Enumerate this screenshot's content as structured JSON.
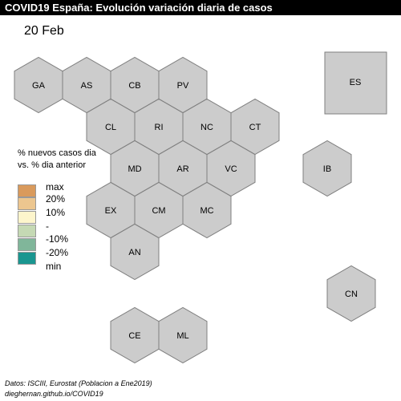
{
  "title": "COVID19 España: Evolución variación diaria de casos",
  "date_label": "20 Feb",
  "legend": {
    "title_line1": "% nuevos casos dia",
    "title_line2": "vs. % dia anterior",
    "items": [
      {
        "label": "max",
        "color": "#d99a5c"
      },
      {
        "label": "20%",
        "color": "#ecc68f"
      },
      {
        "label": "10%",
        "color": "#fdf5cc"
      },
      {
        "label": "-",
        "color": "#c5d9b4"
      },
      {
        "label": "-10%",
        "color": "#80b69a"
      },
      {
        "label": "-20%",
        "color": "#1a9690"
      },
      {
        "label": "min",
        "color": "#1a9690"
      }
    ]
  },
  "regions": [
    {
      "code": "GA",
      "fill": "#cccccc"
    },
    {
      "code": "AS",
      "fill": "#cccccc"
    },
    {
      "code": "CB",
      "fill": "#cccccc"
    },
    {
      "code": "PV",
      "fill": "#cccccc"
    },
    {
      "code": "CL",
      "fill": "#cccccc"
    },
    {
      "code": "RI",
      "fill": "#cccccc"
    },
    {
      "code": "NC",
      "fill": "#cccccc"
    },
    {
      "code": "CT",
      "fill": "#cccccc"
    },
    {
      "code": "MD",
      "fill": "#cccccc"
    },
    {
      "code": "AR",
      "fill": "#cccccc"
    },
    {
      "code": "VC",
      "fill": "#cccccc"
    },
    {
      "code": "IB",
      "fill": "#cccccc"
    },
    {
      "code": "EX",
      "fill": "#cccccc"
    },
    {
      "code": "CM",
      "fill": "#cccccc"
    },
    {
      "code": "MC",
      "fill": "#cccccc"
    },
    {
      "code": "AN",
      "fill": "#cccccc"
    },
    {
      "code": "CN",
      "fill": "#cccccc"
    },
    {
      "code": "CE",
      "fill": "#cccccc"
    },
    {
      "code": "ML",
      "fill": "#cccccc"
    }
  ],
  "es_box": {
    "code": "ES",
    "fill": "#cccccc"
  },
  "footer": {
    "line1": "Datos: ISCIII, Eurostat (Poblacion a Ene2019)",
    "line2": "dieghernan.github.io/COVID19"
  }
}
